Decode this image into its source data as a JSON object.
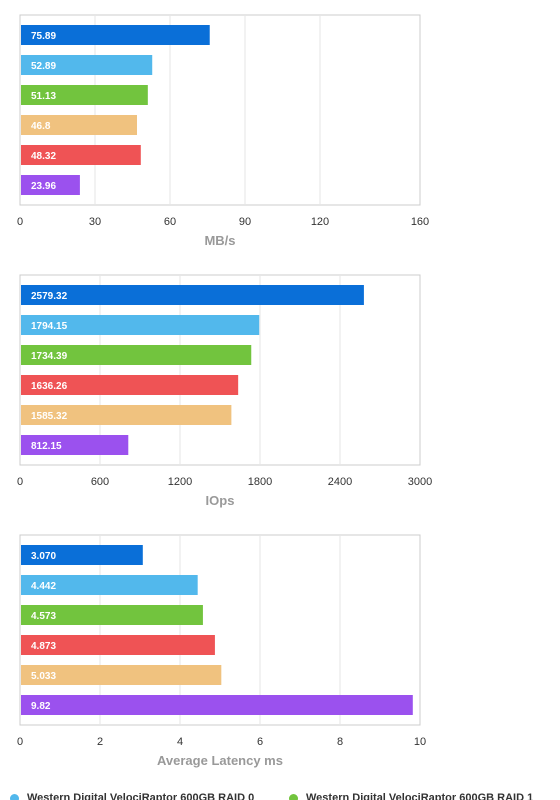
{
  "chart_data": [
    {
      "type": "bar",
      "orientation": "horizontal",
      "xlabel": "MB/s",
      "xlim": [
        0,
        160
      ],
      "ticks": [
        "0",
        "30",
        "60",
        "90",
        "120",
        "160"
      ],
      "tick_values": [
        0,
        30,
        60,
        90,
        120,
        160
      ],
      "grid": true,
      "bars": [
        {
          "value": 75.89,
          "label": "75.89",
          "color": "#0a6fd8"
        },
        {
          "value": 52.89,
          "label": "52.89",
          "color": "#52b8ec"
        },
        {
          "value": 51.13,
          "label": "51.13",
          "color": "#72c43e"
        },
        {
          "value": 46.8,
          "label": "46.8",
          "color": "#f0c27f"
        },
        {
          "value": 48.32,
          "label": "48.32",
          "color": "#ef5355"
        },
        {
          "value": 23.96,
          "label": "23.96",
          "color": "#9b51ee"
        }
      ]
    },
    {
      "type": "bar",
      "orientation": "horizontal",
      "xlabel": "IOps",
      "xlim": [
        0,
        3000
      ],
      "ticks": [
        "0",
        "600",
        "1200",
        "1800",
        "2400",
        "3000"
      ],
      "tick_values": [
        0,
        600,
        1200,
        1800,
        2400,
        3000
      ],
      "grid": true,
      "bars": [
        {
          "value": 2579.32,
          "label": "2579.32",
          "color": "#0a6fd8"
        },
        {
          "value": 1794.15,
          "label": "1794.15",
          "color": "#52b8ec"
        },
        {
          "value": 1734.39,
          "label": "1734.39",
          "color": "#72c43e"
        },
        {
          "value": 1636.26,
          "label": "1636.26",
          "color": "#ef5355"
        },
        {
          "value": 1585.32,
          "label": "1585.32",
          "color": "#f0c27f"
        },
        {
          "value": 812.15,
          "label": "812.15",
          "color": "#9b51ee"
        }
      ]
    },
    {
      "type": "bar",
      "orientation": "horizontal",
      "xlabel": "Average Latency ms",
      "xlim": [
        0,
        10
      ],
      "ticks": [
        "0",
        "2",
        "4",
        "6",
        "8",
        "10"
      ],
      "tick_values": [
        0,
        2,
        4,
        6,
        8,
        10
      ],
      "grid": true,
      "bars": [
        {
          "value": 3.07,
          "label": "3.070",
          "color": "#0a6fd8"
        },
        {
          "value": 4.442,
          "label": "4.442",
          "color": "#52b8ec"
        },
        {
          "value": 4.573,
          "label": "4.573",
          "color": "#72c43e"
        },
        {
          "value": 4.873,
          "label": "4.873",
          "color": "#ef5355"
        },
        {
          "value": 5.033,
          "label": "5.033",
          "color": "#f0c27f"
        },
        {
          "value": 9.82,
          "label": "9.82",
          "color": "#9b51ee"
        }
      ]
    }
  ],
  "legend": {
    "placement": "bottom",
    "items": [
      {
        "label": "Western Digital VelociRaptor 600GB RAID 0",
        "color": "#52b8ec"
      },
      {
        "label": "Western Digital VelociRaptor 600GB RAID 1",
        "color": "#72c43e"
      }
    ]
  }
}
